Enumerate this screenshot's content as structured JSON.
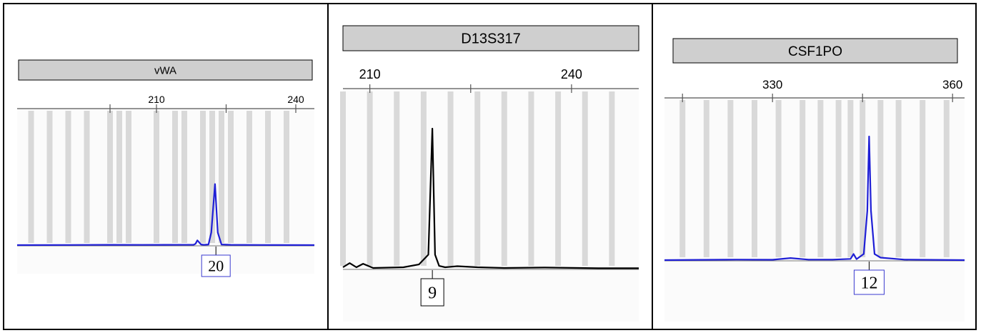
{
  "chart_data": [
    {
      "type": "line",
      "title": "vWA",
      "x_ticks": [
        210,
        240
      ],
      "xlim": [
        180,
        244
      ],
      "bins": [
        183,
        187,
        191,
        195,
        200,
        202,
        204,
        210,
        214,
        216,
        220,
        222,
        224,
        226,
        230,
        234,
        238
      ],
      "series": [
        {
          "color": "#1f1fd6",
          "x": [
            180,
            192,
            200,
            207,
            212,
            218.0,
            218.4,
            218.8,
            219.6,
            220.2,
            221.2,
            221.8,
            222.6,
            223.2,
            224.0,
            226,
            232,
            244
          ],
          "y": [
            0,
            0.002,
            0.004,
            0.003,
            0.004,
            0.006,
            0.02,
            0.075,
            0.01,
            0.005,
            0.01,
            0.2,
            0.97,
            0.2,
            0.01,
            0.004,
            0.002,
            0
          ]
        }
      ],
      "allele_label": "20",
      "allele_x": 222.8
    },
    {
      "type": "line",
      "title": "D13S317",
      "x_ticks": [
        210,
        240
      ],
      "xlim": [
        206,
        250
      ],
      "bins": [
        206,
        210,
        214,
        218,
        222,
        226,
        230,
        234,
        238,
        242,
        246
      ],
      "series": [
        {
          "color": "#000000",
          "x": [
            206,
            207.0,
            208,
            209.0,
            210.5,
            215,
            217.3,
            218.7,
            219.3,
            219.7,
            220.3,
            221.2,
            223,
            226,
            230,
            236,
            244,
            250
          ],
          "y": [
            0.01,
            0.04,
            0.01,
            0.035,
            0.005,
            0.01,
            0.03,
            0.1,
            1.0,
            0.1,
            0.02,
            0.01,
            0.018,
            0.01,
            0.005,
            0.008,
            0.003,
            0.003
          ]
        }
      ],
      "allele_label": "9",
      "allele_x": 219.3
    },
    {
      "type": "line",
      "title": "CSF1PO",
      "x_ticks": [
        330,
        360
      ],
      "xlim": [
        312,
        362
      ],
      "bins": [
        315,
        319,
        323,
        327,
        331,
        335,
        338,
        341,
        343,
        345,
        348,
        351,
        355,
        359
      ],
      "series": [
        {
          "color": "#1f1fd6",
          "x": [
            312,
            324,
            330,
            333,
            336,
            340,
            343.0,
            343.5,
            344.0,
            345.2,
            345.8,
            346.1,
            346.4,
            347.0,
            348.0,
            352,
            362
          ],
          "y": [
            0,
            0.004,
            0.003,
            0.017,
            0.004,
            0.004,
            0.01,
            0.05,
            0.008,
            0.05,
            0.4,
            1.0,
            0.4,
            0.05,
            0.02,
            0.004,
            0
          ]
        }
      ],
      "allele_label": "12",
      "allele_x": 346.1
    }
  ]
}
